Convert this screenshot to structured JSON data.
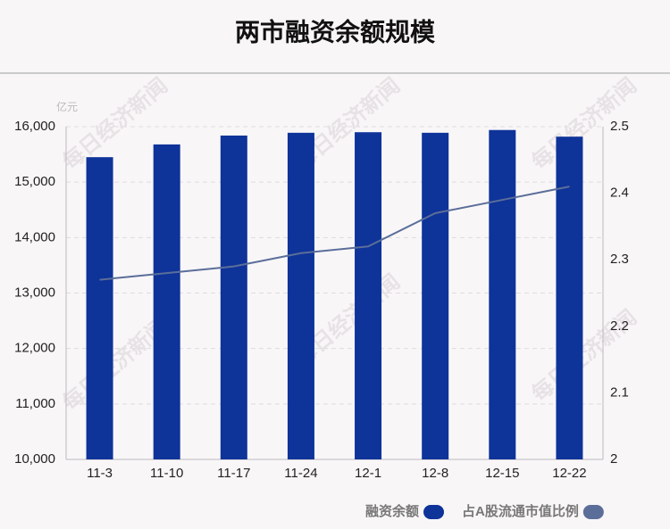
{
  "chart_data": {
    "type": "bar",
    "title": "两市融资余额规模",
    "unit_label": "亿元",
    "watermark": "每日经济新闻",
    "categories": [
      "11-3",
      "11-10",
      "11-17",
      "11-24",
      "12-1",
      "12-8",
      "12-15",
      "12-22"
    ],
    "series": [
      {
        "name": "融资余额",
        "color": "#0e3399",
        "values": [
          15450,
          15680,
          15840,
          15890,
          15900,
          15890,
          15940,
          15820
        ]
      },
      {
        "name": "占A股流通市值比例",
        "color": "#5b6e99",
        "axis": "y2",
        "values": [
          2.27,
          2.28,
          2.29,
          2.31,
          2.32,
          2.37,
          2.39,
          2.41
        ]
      }
    ],
    "ylim": [
      10000,
      16000
    ],
    "yticks": [
      {
        "value": 10000,
        "label": "10,000"
      },
      {
        "value": 11000,
        "label": "11,000"
      },
      {
        "value": 12000,
        "label": "12,000"
      },
      {
        "value": 13000,
        "label": "13,000"
      },
      {
        "value": 14000,
        "label": "14,000"
      },
      {
        "value": 15000,
        "label": "15,000"
      },
      {
        "value": 16000,
        "label": "16,000"
      }
    ],
    "y2lim": [
      2,
      2.5
    ],
    "y2ticks": [
      2,
      2.1,
      2.2,
      2.3,
      2.4,
      2.5
    ],
    "grid": true
  }
}
